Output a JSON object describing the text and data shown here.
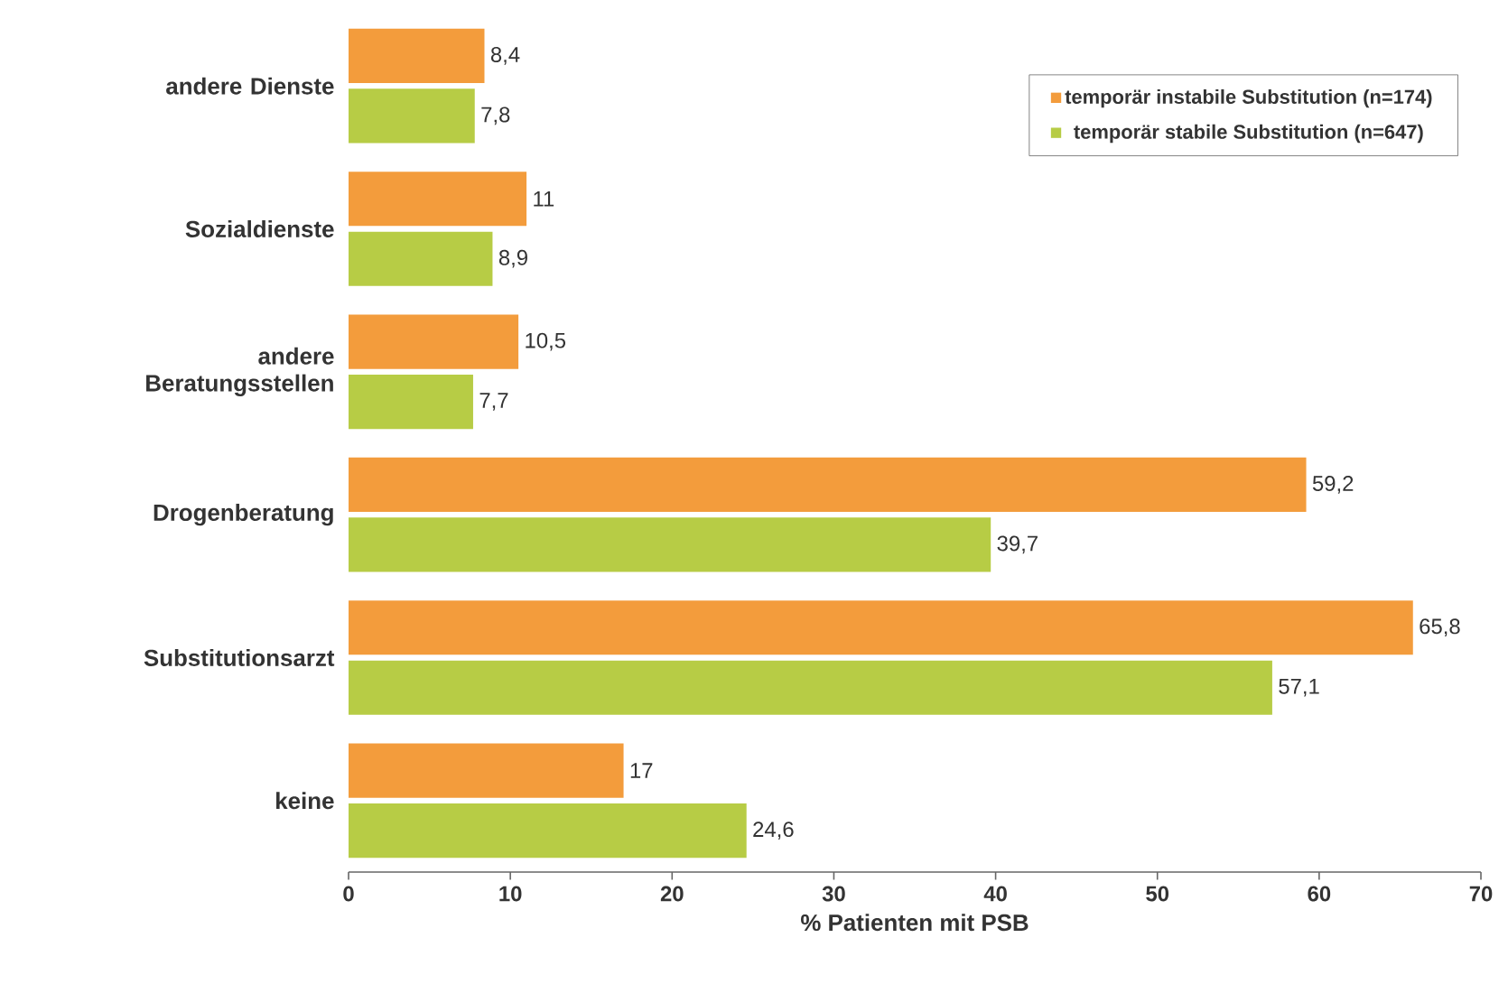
{
  "chart_data": {
    "type": "bar",
    "orientation": "horizontal",
    "categories": [
      "andere Dienste",
      "Sozialdienste",
      "andere Beratungsstellen",
      "Drogenberatung",
      "Substitutionsarzt",
      "keine"
    ],
    "series": [
      {
        "name": "temporär instabile Substitution (n=174)",
        "color": "#f39c3c",
        "values": [
          8.4,
          11,
          10.5,
          59.2,
          65.8,
          17
        ],
        "value_labels": [
          "8,4",
          "11",
          "10,5",
          "59,2",
          "65,8",
          "17"
        ]
      },
      {
        "name": "temporär stabile Substitution (n=647)",
        "color": "#b7cc45",
        "values": [
          7.8,
          8.9,
          7.7,
          39.7,
          57.1,
          24.6
        ],
        "value_labels": [
          "7,8",
          "8,9",
          "7,7",
          "39,7",
          "57,1",
          "24,6"
        ]
      }
    ],
    "xlabel": "% Patienten mit PSB",
    "xlim": [
      0,
      70
    ],
    "xticks": [
      0,
      10,
      20,
      30,
      40,
      50,
      60,
      70
    ],
    "legend": "top right",
    "grid": false
  }
}
